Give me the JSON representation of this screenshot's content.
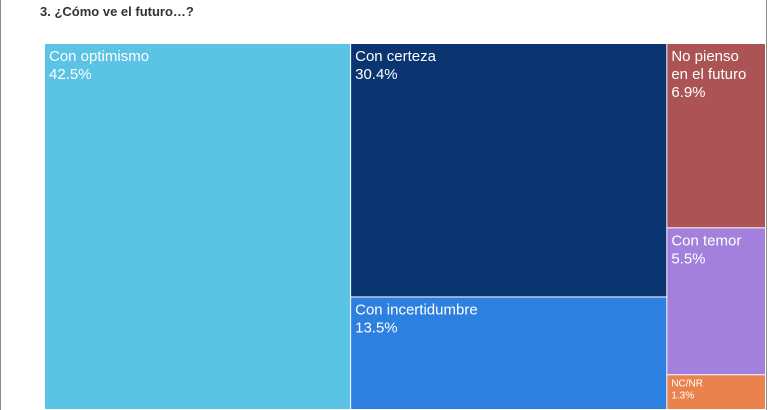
{
  "title": "3. ¿Cómo ve el futuro…?",
  "chart_data": {
    "type": "treemap",
    "title": "3. ¿Cómo ve el futuro…?",
    "items": [
      {
        "label": "Con optimismo",
        "value_label": "42.5%",
        "value": 42.5,
        "color": "#5bc3e3"
      },
      {
        "label": "Con certeza",
        "value_label": "30.4%",
        "value": 30.4,
        "color": "#0a3570"
      },
      {
        "label": "Con incertidumbre",
        "value_label": "13.5%",
        "value": 13.5,
        "color": "#2e80e0"
      },
      {
        "label": "No pienso en el futuro",
        "label_lines": [
          "No pienso",
          "en el futuro"
        ],
        "value_label": "6.9%",
        "value": 6.9,
        "color": "#ac5455"
      },
      {
        "label": "Con temor",
        "value_label": "5.5%",
        "value": 5.5,
        "color": "#a380db"
      },
      {
        "label": "NC/NR",
        "value_label": "1.3%",
        "value": 1.3,
        "color": "#e9824c"
      }
    ]
  }
}
